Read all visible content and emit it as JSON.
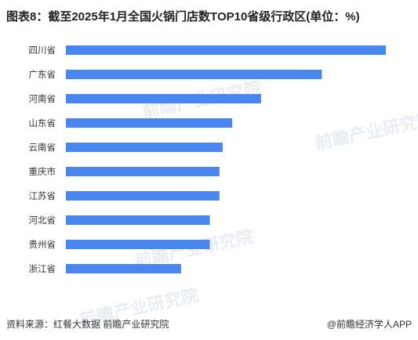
{
  "title": "图表8：截至2025年1月全国火锅门店数TOP10省级行政区(单位：%)",
  "source": "资料来源：红餐大数据 前瞻产业研究院",
  "credit": "@前瞻经济学人APP",
  "watermark": "前瞻产业研究院",
  "chart_data": {
    "type": "bar",
    "orientation": "horizontal",
    "categories": [
      "四川省",
      "广东省",
      "河南省",
      "山东省",
      "云南省",
      "重庆市",
      "江苏省",
      "河北省",
      "贵州省",
      "浙江省"
    ],
    "values": [
      10.0,
      8.0,
      6.1,
      5.2,
      4.9,
      4.8,
      4.8,
      4.5,
      4.5,
      3.6
    ],
    "xlim": [
      0,
      10
    ],
    "grid": false,
    "legend": "none",
    "bar_color": "#4a86f0"
  }
}
